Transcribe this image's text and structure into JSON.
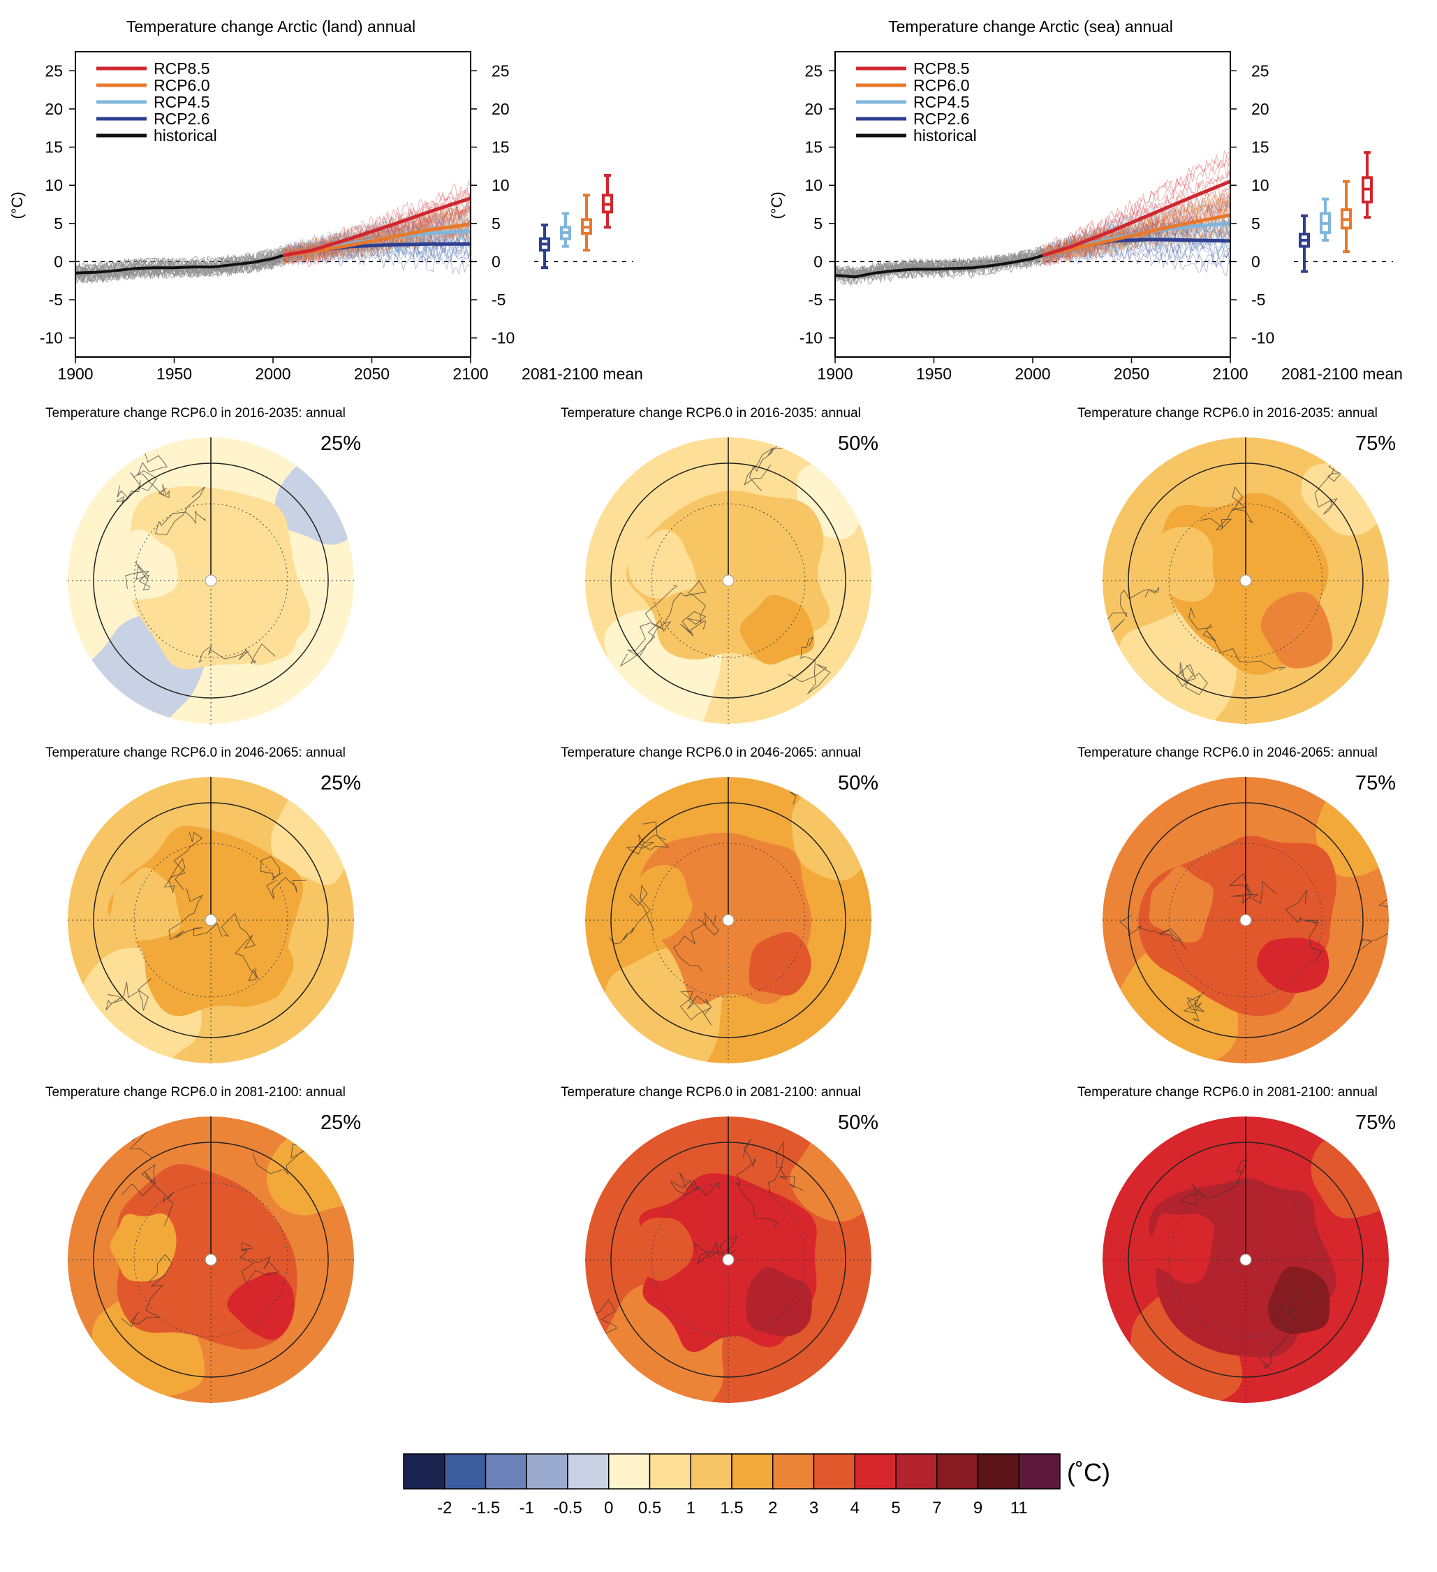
{
  "colors": {
    "rcp85": "#d0262f",
    "rcp60": "#e8782c",
    "rcp45": "#7fb5db",
    "rcp26": "#2f3f8f",
    "historical": "#111111",
    "ensemble_hist": "#8f8f8f"
  },
  "chart_data": [
    {
      "type": "line",
      "title": "Temperature change Arctic (land) annual",
      "ylabel": "(°C)",
      "xlabel": "",
      "xlim": [
        1900,
        2100
      ],
      "ylim": [
        -12.5,
        27.5
      ],
      "xticks": [
        1900,
        1950,
        2000,
        2050,
        2100
      ],
      "yticks": [
        -10,
        -5,
        0,
        5,
        10,
        15,
        20,
        25
      ],
      "legend": [
        "RCP8.5",
        "RCP6.0",
        "RCP4.5",
        "RCP2.6",
        "historical"
      ],
      "legend_position": "top-left",
      "series": [
        {
          "name": "historical",
          "x": [
            1900,
            1910,
            1920,
            1930,
            1940,
            1950,
            1960,
            1970,
            1980,
            1990,
            2000,
            2005
          ],
          "y": [
            -1.5,
            -1.4,
            -1.2,
            -0.9,
            -0.8,
            -0.8,
            -0.7,
            -0.7,
            -0.4,
            -0.1,
            0.4,
            0.8
          ]
        },
        {
          "name": "RCP2.6",
          "x": [
            2005,
            2020,
            2040,
            2060,
            2080,
            2100
          ],
          "y": [
            0.8,
            1.4,
            2.0,
            2.2,
            2.3,
            2.3
          ]
        },
        {
          "name": "RCP4.5",
          "x": [
            2005,
            2020,
            2040,
            2060,
            2080,
            2100
          ],
          "y": [
            0.8,
            1.4,
            2.4,
            3.2,
            3.7,
            4.0
          ]
        },
        {
          "name": "RCP6.0",
          "x": [
            2005,
            2020,
            2040,
            2060,
            2080,
            2100
          ],
          "y": [
            0.8,
            1.3,
            2.2,
            3.2,
            4.2,
            4.9
          ]
        },
        {
          "name": "RCP8.5",
          "x": [
            2005,
            2020,
            2040,
            2060,
            2080,
            2100
          ],
          "y": [
            0.8,
            1.5,
            3.1,
            4.8,
            6.6,
            8.3
          ]
        }
      ],
      "boxplot": {
        "xlabel": "2081-2100 mean",
        "boxes": [
          {
            "name": "RCP2.6",
            "min": -0.8,
            "q1": 1.5,
            "median": 2.3,
            "q3": 3.0,
            "max": 4.8
          },
          {
            "name": "RCP4.5",
            "min": 2.0,
            "q1": 3.0,
            "median": 3.8,
            "q3": 4.5,
            "max": 6.3
          },
          {
            "name": "RCP6.0",
            "min": 1.5,
            "q1": 3.7,
            "median": 4.5,
            "q3": 5.5,
            "max": 8.7
          },
          {
            "name": "RCP8.5",
            "min": 4.5,
            "q1": 6.5,
            "median": 7.5,
            "q3": 8.7,
            "max": 11.3
          }
        ]
      }
    },
    {
      "type": "line",
      "title": "Temperature change Arctic (sea) annual",
      "ylabel": "(°C)",
      "xlabel": "",
      "xlim": [
        1900,
        2100
      ],
      "ylim": [
        -12.5,
        27.5
      ],
      "xticks": [
        1900,
        1950,
        2000,
        2050,
        2100
      ],
      "yticks": [
        -10,
        -5,
        0,
        5,
        10,
        15,
        20,
        25
      ],
      "legend": [
        "RCP8.5",
        "RCP6.0",
        "RCP4.5",
        "RCP2.6",
        "historical"
      ],
      "legend_position": "top-left",
      "series": [
        {
          "name": "historical",
          "x": [
            1900,
            1910,
            1920,
            1930,
            1940,
            1950,
            1960,
            1970,
            1980,
            1990,
            2000,
            2005
          ],
          "y": [
            -1.8,
            -2.0,
            -1.5,
            -1.2,
            -1.0,
            -1.0,
            -0.9,
            -0.8,
            -0.5,
            -0.1,
            0.4,
            0.8
          ]
        },
        {
          "name": "RCP2.6",
          "x": [
            2005,
            2020,
            2040,
            2060,
            2080,
            2100
          ],
          "y": [
            0.8,
            1.8,
            2.7,
            2.9,
            2.8,
            2.7
          ]
        },
        {
          "name": "RCP4.5",
          "x": [
            2005,
            2020,
            2040,
            2060,
            2080,
            2100
          ],
          "y": [
            0.8,
            1.8,
            3.0,
            4.0,
            4.6,
            5.0
          ]
        },
        {
          "name": "RCP6.0",
          "x": [
            2005,
            2020,
            2040,
            2060,
            2080,
            2100
          ],
          "y": [
            0.8,
            1.7,
            2.8,
            4.0,
            5.1,
            6.1
          ]
        },
        {
          "name": "RCP8.5",
          "x": [
            2005,
            2020,
            2040,
            2060,
            2080,
            2100
          ],
          "y": [
            0.8,
            2.0,
            4.0,
            6.2,
            8.4,
            10.5
          ]
        }
      ],
      "boxplot": {
        "xlabel": "2081-2100 mean",
        "boxes": [
          {
            "name": "RCP2.6",
            "min": -1.3,
            "q1": 2.0,
            "median": 2.8,
            "q3": 3.6,
            "max": 6.0
          },
          {
            "name": "RCP4.5",
            "min": 2.8,
            "q1": 3.8,
            "median": 5.0,
            "q3": 6.3,
            "max": 8.2
          },
          {
            "name": "RCP6.0",
            "min": 1.3,
            "q1": 4.4,
            "median": 5.5,
            "q3": 6.8,
            "max": 10.5
          },
          {
            "name": "RCP8.5",
            "min": 5.8,
            "q1": 7.8,
            "median": 9.5,
            "q3": 11.0,
            "max": 14.3
          }
        ]
      }
    },
    {
      "type": "heatmap",
      "subtype": "polar-maps",
      "panels": [
        {
          "title": "Temperature change RCP6.0 in 2016-2035: annual",
          "percentile": "25%",
          "base": 5,
          "land": 5,
          "inner": 6,
          "hot": 6,
          "low": 4
        },
        {
          "title": "Temperature change RCP6.0 in 2016-2035: annual",
          "percentile": "50%",
          "base": 6,
          "land": 6,
          "inner": 7,
          "hot": 8,
          "low": 5
        },
        {
          "title": "Temperature change RCP6.0 in 2016-2035: annual",
          "percentile": "75%",
          "base": 7,
          "land": 7,
          "inner": 8,
          "hot": 9,
          "low": 6
        },
        {
          "title": "Temperature change RCP6.0 in 2046-2065: annual",
          "percentile": "25%",
          "base": 7,
          "land": 7,
          "inner": 8,
          "hot": 8,
          "low": 6
        },
        {
          "title": "Temperature change RCP6.0 in 2046-2065: annual",
          "percentile": "50%",
          "base": 8,
          "land": 8,
          "inner": 9,
          "hot": 10,
          "low": 7
        },
        {
          "title": "Temperature change RCP6.0 in 2046-2065: annual",
          "percentile": "75%",
          "base": 9,
          "land": 9,
          "inner": 10,
          "hot": 11,
          "low": 8
        },
        {
          "title": "Temperature change RCP6.0 in 2081-2100: annual",
          "percentile": "25%",
          "base": 9,
          "land": 8,
          "inner": 10,
          "hot": 11,
          "low": 8
        },
        {
          "title": "Temperature change RCP6.0 in 2081-2100: annual",
          "percentile": "50%",
          "base": 10,
          "land": 10,
          "inner": 11,
          "hot": 12,
          "low": 9
        },
        {
          "title": "Temperature change RCP6.0 in 2081-2100: annual",
          "percentile": "75%",
          "base": 11,
          "land": 11,
          "inner": 12,
          "hot": 13,
          "low": 10
        }
      ],
      "colorbar": {
        "colors": [
          "#1b2450",
          "#3d5d9e",
          "#6b81b8",
          "#9aabcf",
          "#c9d2e4",
          "#fff4cc",
          "#fddf97",
          "#f8c565",
          "#f2a93a",
          "#ec8438",
          "#e2582d",
          "#d7262c",
          "#b2232d",
          "#861c21",
          "#5c1419",
          "#5e1a3a"
        ],
        "labels": [
          "-2",
          "-1.5",
          "-1",
          "-0.5",
          "0",
          "0.5",
          "1",
          "1.5",
          "2",
          "3",
          "4",
          "5",
          "7",
          "9",
          "11"
        ],
        "unit": "(˚C)"
      }
    }
  ]
}
